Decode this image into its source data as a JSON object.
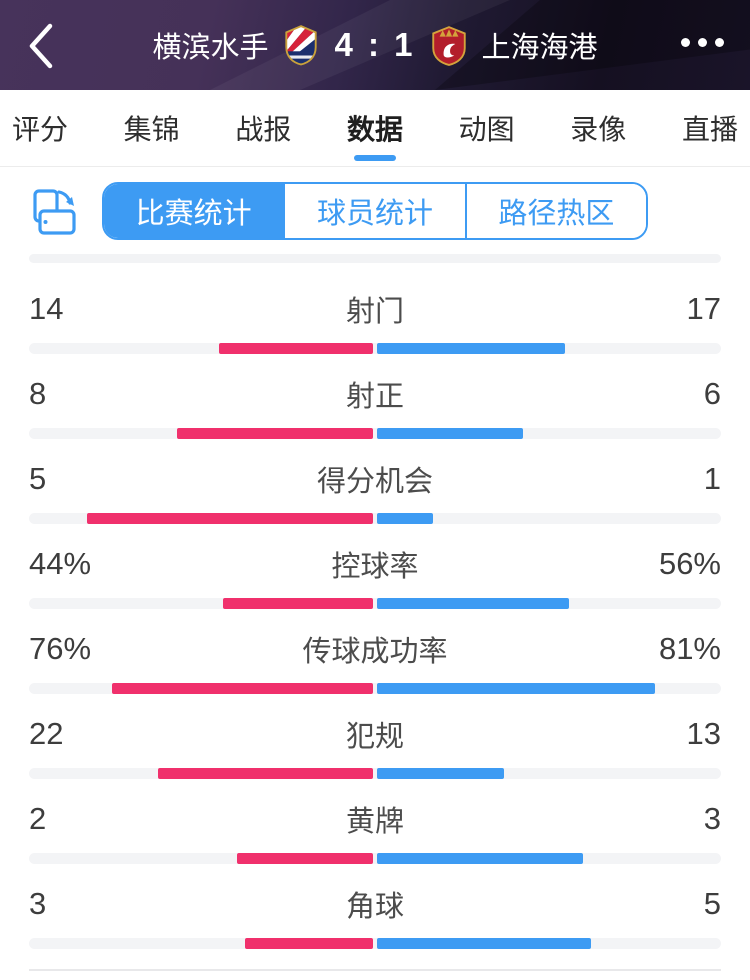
{
  "header": {
    "home_team": "横滨水手",
    "score": "4 : 1",
    "away_team": "上海海港"
  },
  "tabs": [
    {
      "label": "评分",
      "active": false
    },
    {
      "label": "集锦",
      "active": false
    },
    {
      "label": "战报",
      "active": false
    },
    {
      "label": "数据",
      "active": true
    },
    {
      "label": "动图",
      "active": false
    },
    {
      "label": "录像",
      "active": false
    },
    {
      "label": "直播",
      "active": false
    }
  ],
  "subtabs": [
    {
      "label": "比赛统计",
      "active": true
    },
    {
      "label": "球员统计",
      "active": false
    },
    {
      "label": "路径热区",
      "active": false
    }
  ],
  "stats": {
    "rows": [
      {
        "label": "射门",
        "left": "14",
        "right": "17"
      },
      {
        "label": "射正",
        "left": "8",
        "right": "6"
      },
      {
        "label": "得分机会",
        "left": "5",
        "right": "1"
      },
      {
        "label": "控球率",
        "left": "44%",
        "right": "56%"
      },
      {
        "label": "传球成功率",
        "left": "76%",
        "right": "81%"
      },
      {
        "label": "犯规",
        "left": "22",
        "right": "13"
      },
      {
        "label": "黄牌",
        "left": "2",
        "right": "3"
      },
      {
        "label": "角球",
        "left": "3",
        "right": "5"
      }
    ]
  },
  "colors": {
    "accent_blue": "#3d9bf3",
    "accent_pink": "#f0306c",
    "bar_track": "#f3f4f6",
    "header_purple": "#47335b"
  }
}
